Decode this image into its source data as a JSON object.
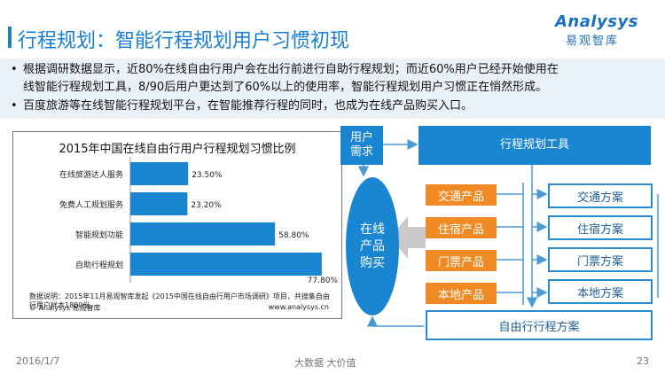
{
  "header": {
    "title": "行程规划：智能行程规划用户习惯初现",
    "logo_main": "Analysys",
    "logo_sub": "易观智库"
  },
  "bullets": [
    "根据调研数据显示，近80%在线自由行用户会在出行前进行自助行程规划；而近60%用户已经开始使用在",
    "线智能行程规划工具，8/90后用户更达到了60%以上的使用率，智能行程规划用户习惯正在悄然形成。",
    "百度旅游等在线智能行程规划平台，在智能推荐行程的同时，也成为在线产品购买入口。"
  ],
  "chart_data": {
    "type": "bar",
    "orientation": "horizontal",
    "title": "2015年中国在线自由行用户行程规划习惯比例",
    "categories": [
      "在线旅游达人服务",
      "免费人工规划服务",
      "智能规划功能",
      "自助行程规划"
    ],
    "values": [
      23.5,
      23.2,
      58.8,
      77.8
    ],
    "value_labels": [
      "23.50%",
      "23.20%",
      "58.80%",
      "77.80%"
    ],
    "xlim": [
      0,
      80
    ],
    "color": "#1a86d1",
    "grid": false
  },
  "chart_note": "数据说明：2015年11月易观智库发起《2015中国在线自由行用户市场调研》项目，共搜集自由行用户样本1800份。",
  "chart_footer_left": "© Analysys 易观智库",
  "chart_footer_right": "www.analysys.cn",
  "diagram": {
    "user_need": "用户\n需求",
    "planning_tool": "行程规划工具",
    "online_purchase": "在线\n产品\n购买",
    "products": [
      "交通产品",
      "住宿产品",
      "门票产品",
      "本地产品"
    ],
    "plans": [
      "交通方案",
      "住宿方案",
      "门票方案",
      "本地方案"
    ],
    "free_plan": "自由行行程方案",
    "colors": {
      "blue": "#1a86d1",
      "orange": "#f08a24"
    }
  },
  "footer": {
    "date": "2016/1/7",
    "tagline": "大数据   大价值",
    "page": "23"
  }
}
